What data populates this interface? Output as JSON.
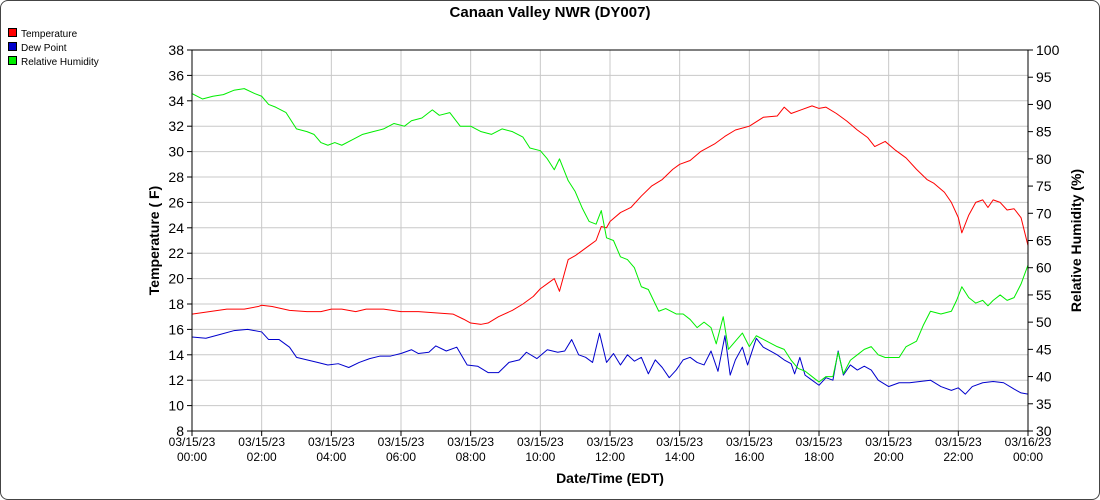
{
  "chart_data": {
    "type": "line",
    "title": "Canaan Valley NWR (DY007)",
    "xlabel": "Date/Time (EDT)",
    "ylabel": "Temperature ( F)",
    "y2label": "Relative Humidity (%)",
    "legend_position": "top-left",
    "grid": true,
    "x_hours_range": [
      0,
      24
    ],
    "ylim": [
      8,
      38
    ],
    "y_ticks": [
      8,
      10,
      12,
      14,
      16,
      18,
      20,
      22,
      24,
      26,
      28,
      30,
      32,
      34,
      36,
      38
    ],
    "y2lim": [
      30,
      100
    ],
    "y2_ticks": [
      30,
      35,
      40,
      45,
      50,
      55,
      60,
      65,
      70,
      75,
      80,
      85,
      90,
      95,
      100
    ],
    "x_ticks": [
      {
        "hours": 0,
        "date": "03/15/23",
        "time": "00:00"
      },
      {
        "hours": 2,
        "date": "03/15/23",
        "time": "02:00"
      },
      {
        "hours": 4,
        "date": "03/15/23",
        "time": "04:00"
      },
      {
        "hours": 6,
        "date": "03/15/23",
        "time": "06:00"
      },
      {
        "hours": 8,
        "date": "03/15/23",
        "time": "08:00"
      },
      {
        "hours": 10,
        "date": "03/15/23",
        "time": "10:00"
      },
      {
        "hours": 12,
        "date": "03/15/23",
        "time": "12:00"
      },
      {
        "hours": 14,
        "date": "03/15/23",
        "time": "14:00"
      },
      {
        "hours": 16,
        "date": "03/15/23",
        "time": "16:00"
      },
      {
        "hours": 18,
        "date": "03/15/23",
        "time": "18:00"
      },
      {
        "hours": 20,
        "date": "03/15/23",
        "time": "20:00"
      },
      {
        "hours": 22,
        "date": "03/15/23",
        "time": "22:00"
      },
      {
        "hours": 24,
        "date": "03/16/23",
        "time": "00:00"
      }
    ],
    "series": [
      {
        "name": "Temperature",
        "color": "#ff0000",
        "axis": "left",
        "points": [
          [
            0.0,
            17.2
          ],
          [
            0.5,
            17.4
          ],
          [
            1.0,
            17.6
          ],
          [
            1.5,
            17.6
          ],
          [
            1.9,
            17.8
          ],
          [
            2.0,
            17.9
          ],
          [
            2.3,
            17.8
          ],
          [
            2.8,
            17.5
          ],
          [
            3.3,
            17.4
          ],
          [
            3.7,
            17.4
          ],
          [
            4.0,
            17.6
          ],
          [
            4.3,
            17.6
          ],
          [
            4.7,
            17.4
          ],
          [
            5.0,
            17.6
          ],
          [
            5.5,
            17.6
          ],
          [
            6.0,
            17.4
          ],
          [
            6.5,
            17.4
          ],
          [
            7.0,
            17.3
          ],
          [
            7.5,
            17.2
          ],
          [
            7.8,
            16.8
          ],
          [
            8.0,
            16.5
          ],
          [
            8.3,
            16.4
          ],
          [
            8.5,
            16.5
          ],
          [
            8.8,
            17.0
          ],
          [
            9.2,
            17.5
          ],
          [
            9.5,
            18.0
          ],
          [
            9.8,
            18.6
          ],
          [
            10.0,
            19.2
          ],
          [
            10.2,
            19.6
          ],
          [
            10.4,
            20.0
          ],
          [
            10.55,
            19.0
          ],
          [
            10.8,
            21.5
          ],
          [
            11.0,
            21.8
          ],
          [
            11.2,
            22.2
          ],
          [
            11.4,
            22.6
          ],
          [
            11.6,
            23.0
          ],
          [
            11.75,
            24.1
          ],
          [
            11.9,
            24.0
          ],
          [
            12.0,
            24.5
          ],
          [
            12.3,
            25.2
          ],
          [
            12.6,
            25.6
          ],
          [
            12.9,
            26.5
          ],
          [
            13.2,
            27.3
          ],
          [
            13.5,
            27.8
          ],
          [
            13.8,
            28.6
          ],
          [
            14.0,
            29.0
          ],
          [
            14.3,
            29.3
          ],
          [
            14.6,
            30.0
          ],
          [
            15.0,
            30.6
          ],
          [
            15.3,
            31.2
          ],
          [
            15.6,
            31.7
          ],
          [
            16.0,
            32.0
          ],
          [
            16.4,
            32.7
          ],
          [
            16.8,
            32.8
          ],
          [
            17.0,
            33.5
          ],
          [
            17.2,
            33.0
          ],
          [
            17.5,
            33.3
          ],
          [
            17.8,
            33.6
          ],
          [
            18.0,
            33.4
          ],
          [
            18.2,
            33.5
          ],
          [
            18.5,
            33.0
          ],
          [
            18.8,
            32.4
          ],
          [
            19.1,
            31.7
          ],
          [
            19.4,
            31.1
          ],
          [
            19.6,
            30.4
          ],
          [
            19.9,
            30.8
          ],
          [
            20.2,
            30.1
          ],
          [
            20.5,
            29.5
          ],
          [
            20.8,
            28.6
          ],
          [
            21.1,
            27.8
          ],
          [
            21.3,
            27.5
          ],
          [
            21.6,
            26.8
          ],
          [
            21.8,
            26.0
          ],
          [
            22.0,
            24.8
          ],
          [
            22.1,
            23.6
          ],
          [
            22.3,
            25.0
          ],
          [
            22.5,
            26.0
          ],
          [
            22.7,
            26.2
          ],
          [
            22.85,
            25.6
          ],
          [
            23.0,
            26.2
          ],
          [
            23.2,
            26.0
          ],
          [
            23.4,
            25.4
          ],
          [
            23.6,
            25.5
          ],
          [
            23.8,
            24.8
          ],
          [
            24.0,
            22.6
          ]
        ]
      },
      {
        "name": "Dew Point",
        "color": "#0000cc",
        "axis": "left",
        "points": [
          [
            0.0,
            15.4
          ],
          [
            0.4,
            15.3
          ],
          [
            0.8,
            15.6
          ],
          [
            1.2,
            15.9
          ],
          [
            1.6,
            16.0
          ],
          [
            2.0,
            15.8
          ],
          [
            2.2,
            15.2
          ],
          [
            2.5,
            15.2
          ],
          [
            2.8,
            14.6
          ],
          [
            3.0,
            13.8
          ],
          [
            3.3,
            13.6
          ],
          [
            3.6,
            13.4
          ],
          [
            3.9,
            13.2
          ],
          [
            4.2,
            13.3
          ],
          [
            4.5,
            13.0
          ],
          [
            4.8,
            13.4
          ],
          [
            5.1,
            13.7
          ],
          [
            5.4,
            13.9
          ],
          [
            5.7,
            13.9
          ],
          [
            6.0,
            14.1
          ],
          [
            6.3,
            14.4
          ],
          [
            6.5,
            14.1
          ],
          [
            6.8,
            14.2
          ],
          [
            7.0,
            14.7
          ],
          [
            7.3,
            14.3
          ],
          [
            7.6,
            14.6
          ],
          [
            7.9,
            13.2
          ],
          [
            8.2,
            13.1
          ],
          [
            8.5,
            12.6
          ],
          [
            8.8,
            12.6
          ],
          [
            9.1,
            13.4
          ],
          [
            9.4,
            13.6
          ],
          [
            9.6,
            14.2
          ],
          [
            9.9,
            13.7
          ],
          [
            10.2,
            14.4
          ],
          [
            10.5,
            14.2
          ],
          [
            10.7,
            14.3
          ],
          [
            10.9,
            15.2
          ],
          [
            11.1,
            14.0
          ],
          [
            11.3,
            13.8
          ],
          [
            11.5,
            13.4
          ],
          [
            11.7,
            15.7
          ],
          [
            11.9,
            13.4
          ],
          [
            12.1,
            14.1
          ],
          [
            12.3,
            13.2
          ],
          [
            12.5,
            14.0
          ],
          [
            12.7,
            13.5
          ],
          [
            12.9,
            13.8
          ],
          [
            13.1,
            12.5
          ],
          [
            13.3,
            13.6
          ],
          [
            13.5,
            13.0
          ],
          [
            13.7,
            12.2
          ],
          [
            13.9,
            12.8
          ],
          [
            14.1,
            13.6
          ],
          [
            14.3,
            13.8
          ],
          [
            14.5,
            13.4
          ],
          [
            14.7,
            13.2
          ],
          [
            14.9,
            14.3
          ],
          [
            15.1,
            12.7
          ],
          [
            15.3,
            15.5
          ],
          [
            15.45,
            12.4
          ],
          [
            15.6,
            13.6
          ],
          [
            15.8,
            14.6
          ],
          [
            15.95,
            13.2
          ],
          [
            16.2,
            15.3
          ],
          [
            16.4,
            14.6
          ],
          [
            16.6,
            14.3
          ],
          [
            16.8,
            14.0
          ],
          [
            17.0,
            13.6
          ],
          [
            17.2,
            13.3
          ],
          [
            17.3,
            12.5
          ],
          [
            17.45,
            13.8
          ],
          [
            17.6,
            12.4
          ],
          [
            17.8,
            12.0
          ],
          [
            18.0,
            11.6
          ],
          [
            18.2,
            12.2
          ],
          [
            18.4,
            12.0
          ],
          [
            18.55,
            14.3
          ],
          [
            18.7,
            12.4
          ],
          [
            18.9,
            13.2
          ],
          [
            19.1,
            12.8
          ],
          [
            19.3,
            13.1
          ],
          [
            19.5,
            12.8
          ],
          [
            19.7,
            12.0
          ],
          [
            20.0,
            11.5
          ],
          [
            20.3,
            11.8
          ],
          [
            20.6,
            11.8
          ],
          [
            20.9,
            11.9
          ],
          [
            21.2,
            12.0
          ],
          [
            21.5,
            11.5
          ],
          [
            21.8,
            11.2
          ],
          [
            22.0,
            11.4
          ],
          [
            22.2,
            10.9
          ],
          [
            22.4,
            11.5
          ],
          [
            22.7,
            11.8
          ],
          [
            23.0,
            11.9
          ],
          [
            23.3,
            11.8
          ],
          [
            23.6,
            11.3
          ],
          [
            23.8,
            11.0
          ],
          [
            24.0,
            10.9
          ]
        ]
      },
      {
        "name": "Relative Humidity",
        "color": "#00ee00",
        "axis": "right",
        "points": [
          [
            0.0,
            92.0
          ],
          [
            0.3,
            91.0
          ],
          [
            0.6,
            91.5
          ],
          [
            0.9,
            91.8
          ],
          [
            1.2,
            92.6
          ],
          [
            1.5,
            92.9
          ],
          [
            1.8,
            92.0
          ],
          [
            2.0,
            91.5
          ],
          [
            2.2,
            90.0
          ],
          [
            2.4,
            89.5
          ],
          [
            2.7,
            88.5
          ],
          [
            3.0,
            85.5
          ],
          [
            3.3,
            85.0
          ],
          [
            3.5,
            84.5
          ],
          [
            3.7,
            83.0
          ],
          [
            3.9,
            82.5
          ],
          [
            4.1,
            83.0
          ],
          [
            4.3,
            82.5
          ],
          [
            4.6,
            83.5
          ],
          [
            4.9,
            84.5
          ],
          [
            5.2,
            85.0
          ],
          [
            5.5,
            85.5
          ],
          [
            5.8,
            86.5
          ],
          [
            6.1,
            86.0
          ],
          [
            6.3,
            87.0
          ],
          [
            6.6,
            87.5
          ],
          [
            6.9,
            89.0
          ],
          [
            7.1,
            88.0
          ],
          [
            7.4,
            88.5
          ],
          [
            7.7,
            86.0
          ],
          [
            8.0,
            86.0
          ],
          [
            8.3,
            85.0
          ],
          [
            8.6,
            84.5
          ],
          [
            8.9,
            85.5
          ],
          [
            9.2,
            85.0
          ],
          [
            9.5,
            84.0
          ],
          [
            9.7,
            82.0
          ],
          [
            10.0,
            81.5
          ],
          [
            10.2,
            80.0
          ],
          [
            10.4,
            78.0
          ],
          [
            10.55,
            80.0
          ],
          [
            10.8,
            76.0
          ],
          [
            11.0,
            74.0
          ],
          [
            11.2,
            71.0
          ],
          [
            11.4,
            68.5
          ],
          [
            11.6,
            68.0
          ],
          [
            11.75,
            70.5
          ],
          [
            11.9,
            65.5
          ],
          [
            12.1,
            65.0
          ],
          [
            12.3,
            62.0
          ],
          [
            12.5,
            61.5
          ],
          [
            12.7,
            60.0
          ],
          [
            12.9,
            56.5
          ],
          [
            13.1,
            56.0
          ],
          [
            13.4,
            52.0
          ],
          [
            13.6,
            52.5
          ],
          [
            13.9,
            51.5
          ],
          [
            14.1,
            51.5
          ],
          [
            14.3,
            50.5
          ],
          [
            14.5,
            49.0
          ],
          [
            14.7,
            50.0
          ],
          [
            14.9,
            49.0
          ],
          [
            15.05,
            46.0
          ],
          [
            15.25,
            51.0
          ],
          [
            15.4,
            45.0
          ],
          [
            15.6,
            46.5
          ],
          [
            15.8,
            48.0
          ],
          [
            16.0,
            45.5
          ],
          [
            16.2,
            47.5
          ],
          [
            16.5,
            46.5
          ],
          [
            16.8,
            45.5
          ],
          [
            17.0,
            45.0
          ],
          [
            17.2,
            43.0
          ],
          [
            17.4,
            41.5
          ],
          [
            17.6,
            41.0
          ],
          [
            17.8,
            40.0
          ],
          [
            18.0,
            39.0
          ],
          [
            18.2,
            40.0
          ],
          [
            18.4,
            40.0
          ],
          [
            18.55,
            44.5
          ],
          [
            18.7,
            40.5
          ],
          [
            18.9,
            43.0
          ],
          [
            19.1,
            44.0
          ],
          [
            19.3,
            45.0
          ],
          [
            19.5,
            45.5
          ],
          [
            19.7,
            44.0
          ],
          [
            19.9,
            43.5
          ],
          [
            20.3,
            43.5
          ],
          [
            20.5,
            45.5
          ],
          [
            20.8,
            46.5
          ],
          [
            21.0,
            49.5
          ],
          [
            21.2,
            52.0
          ],
          [
            21.5,
            51.5
          ],
          [
            21.8,
            52.0
          ],
          [
            21.95,
            54.0
          ],
          [
            22.1,
            56.5
          ],
          [
            22.3,
            54.5
          ],
          [
            22.5,
            53.5
          ],
          [
            22.7,
            54.0
          ],
          [
            22.85,
            53.0
          ],
          [
            23.0,
            54.0
          ],
          [
            23.2,
            55.0
          ],
          [
            23.4,
            54.0
          ],
          [
            23.6,
            54.5
          ],
          [
            23.8,
            57.0
          ],
          [
            24.0,
            60.5
          ]
        ]
      }
    ]
  }
}
